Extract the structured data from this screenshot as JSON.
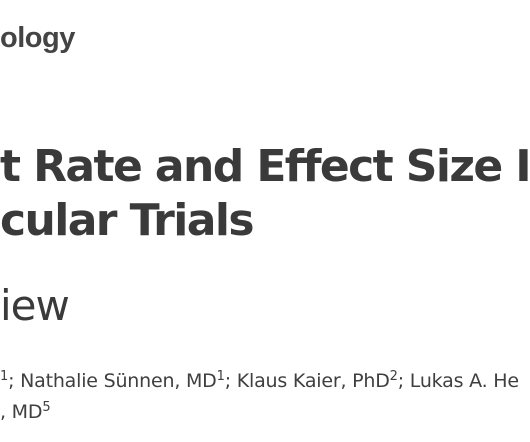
{
  "journal": {
    "name": "ology"
  },
  "article": {
    "title_lines": [
      "t Rate and Effect Size I",
      "cular Trials"
    ],
    "subtitle": "iew"
  },
  "authors": {
    "line1": [
      {
        "text": "",
        "sup": "1"
      },
      {
        "text": "; Nathalie Sünnen, MD",
        "sup": "1"
      },
      {
        "text": "; Klaus Kaier, PhD",
        "sup": "2"
      },
      {
        "text": "; Lukas A. He",
        "sup": ""
      }
    ],
    "line2": [
      {
        "text": ", MD",
        "sup": "5"
      }
    ]
  }
}
